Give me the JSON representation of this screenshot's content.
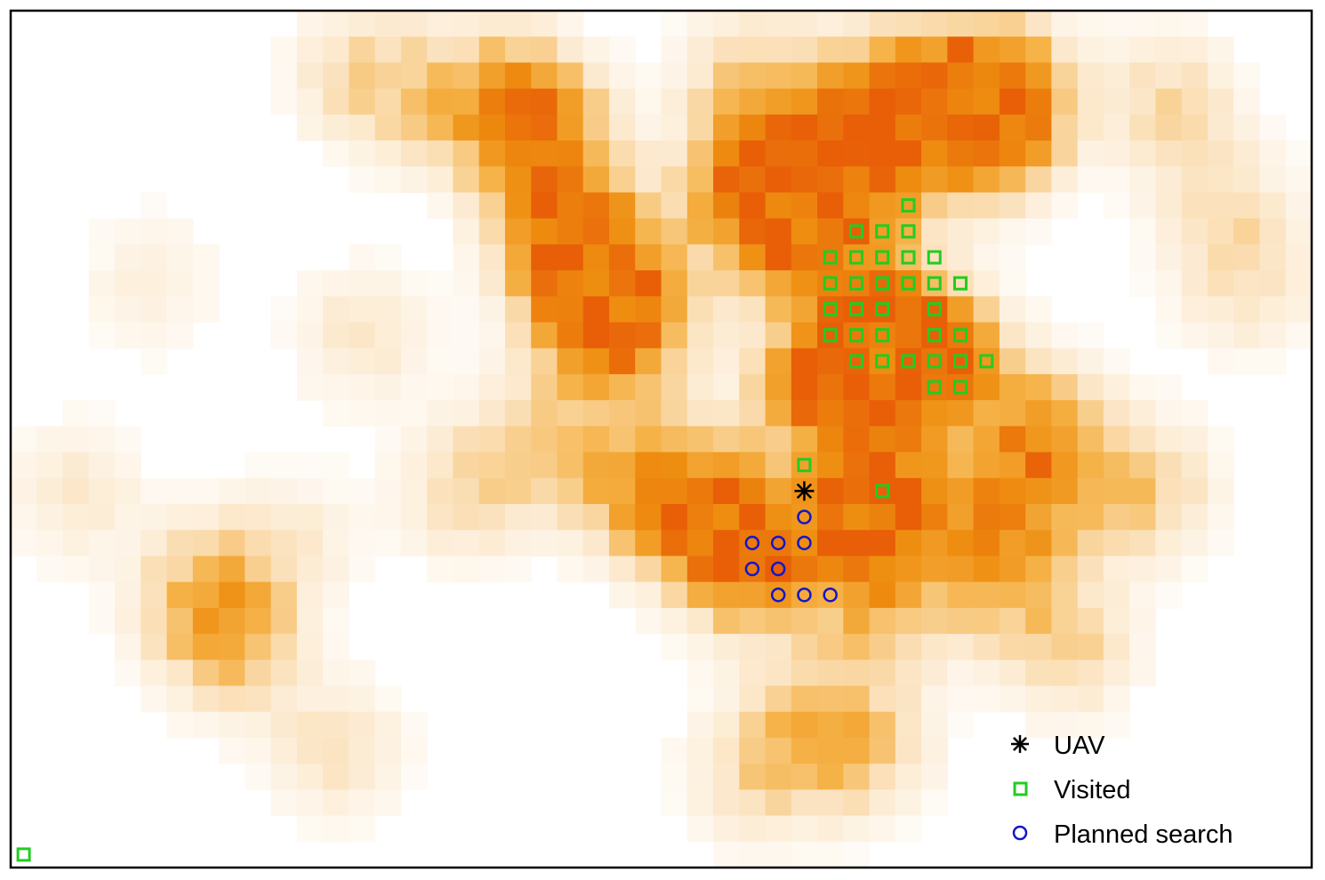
{
  "chart_data": {
    "type": "heatmap",
    "title": "",
    "xlabel": "",
    "ylabel": "",
    "grid_cols": 50,
    "grid_rows": 33,
    "color_scale": [
      "#ffffff",
      "#fbe3c0",
      "#f5b247",
      "#ee8e10",
      "#e85f08"
    ],
    "heat_points": [
      [
        31,
        14,
        1.0
      ],
      [
        33,
        12,
        0.95
      ],
      [
        35,
        13,
        0.9
      ],
      [
        37,
        4,
        0.95
      ],
      [
        36,
        3,
        0.85
      ],
      [
        32,
        7,
        0.7
      ],
      [
        33,
        3,
        0.75
      ],
      [
        29,
        8,
        0.75
      ],
      [
        28,
        6,
        0.7
      ],
      [
        22,
        10,
        0.95
      ],
      [
        21,
        8,
        0.7
      ],
      [
        20,
        5,
        0.6
      ],
      [
        19,
        3,
        0.6
      ],
      [
        23,
        12,
        0.75
      ],
      [
        27,
        19,
        0.8
      ],
      [
        33,
        18,
        0.8
      ],
      [
        39,
        16,
        0.7
      ],
      [
        24,
        18,
        0.7
      ],
      [
        28,
        21,
        0.7
      ],
      [
        32,
        20,
        0.6
      ],
      [
        38,
        19,
        0.5
      ],
      [
        43,
        18,
        0.4
      ],
      [
        37,
        21,
        0.45
      ],
      [
        7,
        22,
        0.45
      ],
      [
        8,
        24,
        0.4
      ],
      [
        30,
        5,
        0.5
      ],
      [
        28,
        2,
        0.35
      ],
      [
        13,
        2,
        0.3
      ],
      [
        16,
        3,
        0.3
      ],
      [
        38,
        2,
        0.3
      ],
      [
        44,
        3,
        0.3
      ],
      [
        46,
        7,
        0.25
      ],
      [
        47,
        10,
        0.25
      ],
      [
        20,
        16,
        0.35
      ],
      [
        17,
        18,
        0.3
      ],
      [
        13,
        12,
        0.22
      ],
      [
        33,
        23,
        0.35
      ],
      [
        32,
        28,
        0.4
      ],
      [
        30,
        27,
        0.3
      ],
      [
        40,
        24,
        0.35
      ],
      [
        28,
        29,
        0.25
      ],
      [
        12,
        28,
        0.25
      ],
      [
        5,
        10,
        0.15
      ],
      [
        2,
        18,
        0.2
      ],
      [
        10,
        20,
        0.2
      ]
    ],
    "visited": [
      [
        34,
        7
      ],
      [
        32,
        8
      ],
      [
        33,
        8
      ],
      [
        34,
        8
      ],
      [
        31,
        9
      ],
      [
        32,
        9
      ],
      [
        33,
        9
      ],
      [
        34,
        9
      ],
      [
        35,
        9
      ],
      [
        31,
        10
      ],
      [
        32,
        10
      ],
      [
        33,
        10
      ],
      [
        34,
        10
      ],
      [
        35,
        10
      ],
      [
        36,
        10
      ],
      [
        31,
        11
      ],
      [
        32,
        11
      ],
      [
        33,
        11
      ],
      [
        35,
        11
      ],
      [
        31,
        12
      ],
      [
        32,
        12
      ],
      [
        33,
        12
      ],
      [
        35,
        12
      ],
      [
        36,
        12
      ],
      [
        32,
        13
      ],
      [
        33,
        13
      ],
      [
        34,
        13
      ],
      [
        35,
        13
      ],
      [
        36,
        13
      ],
      [
        37,
        13
      ],
      [
        35,
        14
      ],
      [
        36,
        14
      ],
      [
        30,
        17
      ],
      [
        33,
        18
      ],
      [
        0,
        32
      ]
    ],
    "uav": [
      30,
      18
    ],
    "planned_search": [
      [
        30,
        19
      ],
      [
        28,
        20
      ],
      [
        29,
        20
      ],
      [
        30,
        20
      ],
      [
        28,
        21
      ],
      [
        29,
        21
      ],
      [
        29,
        22
      ],
      [
        30,
        22
      ],
      [
        31,
        22
      ]
    ],
    "legend": {
      "position": "bottom-right",
      "items": [
        {
          "label": "UAV",
          "marker": "asterisk",
          "color": "#000000"
        },
        {
          "label": "Visited",
          "marker": "square",
          "color": "#22cc22"
        },
        {
          "label": "Planned search",
          "marker": "circle",
          "color": "#1515c8"
        }
      ]
    }
  }
}
